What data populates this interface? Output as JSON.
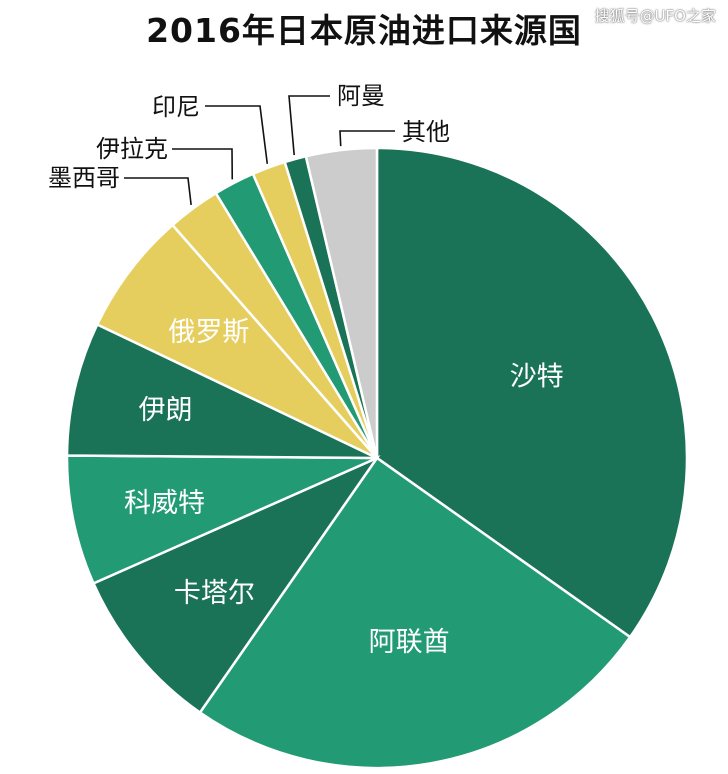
{
  "watermark": "搜狐号@UFO之家",
  "colors": {
    "dark_green": "#1b7357",
    "mid_green": "#229a74",
    "yellow": "#e5ce5e",
    "gray": "#cccccc",
    "border": "#ffffff"
  },
  "chart_data": {
    "type": "pie",
    "title": "2016年日本原油进口来源国",
    "unit": "%",
    "start_angle_deg": 0,
    "direction": "clockwise",
    "slices": [
      {
        "label": "沙特",
        "value": 34.0,
        "color": "#1b7357",
        "label_position": "inside"
      },
      {
        "label": "阿联酋",
        "value": 24.3,
        "color": "#229a74",
        "label_position": "inside"
      },
      {
        "label": "卡塔尔",
        "value": 8.5,
        "color": "#1b7357",
        "label_position": "inside"
      },
      {
        "label": "科威特",
        "value": 6.6,
        "color": "#229a74",
        "label_position": "inside"
      },
      {
        "label": "伊朗",
        "value": 6.8,
        "color": "#1b7357",
        "label_position": "inside"
      },
      {
        "label": "俄罗斯",
        "value": 6.3,
        "color": "#e5ce5e",
        "label_position": "inside"
      },
      {
        "label": "墨西哥",
        "value": 2.7,
        "color": "#e5ce5e",
        "label_position": "outside"
      },
      {
        "label": "伊拉克",
        "value": 2.1,
        "color": "#229a74",
        "label_position": "outside"
      },
      {
        "label": "印尼",
        "value": 1.7,
        "color": "#e5ce5e",
        "label_position": "outside"
      },
      {
        "label": "阿曼",
        "value": 1.1,
        "color": "#1b7357",
        "label_position": "outside"
      },
      {
        "label": "其他",
        "value": 3.6,
        "color": "#cccccc",
        "label_position": "outside"
      }
    ]
  }
}
